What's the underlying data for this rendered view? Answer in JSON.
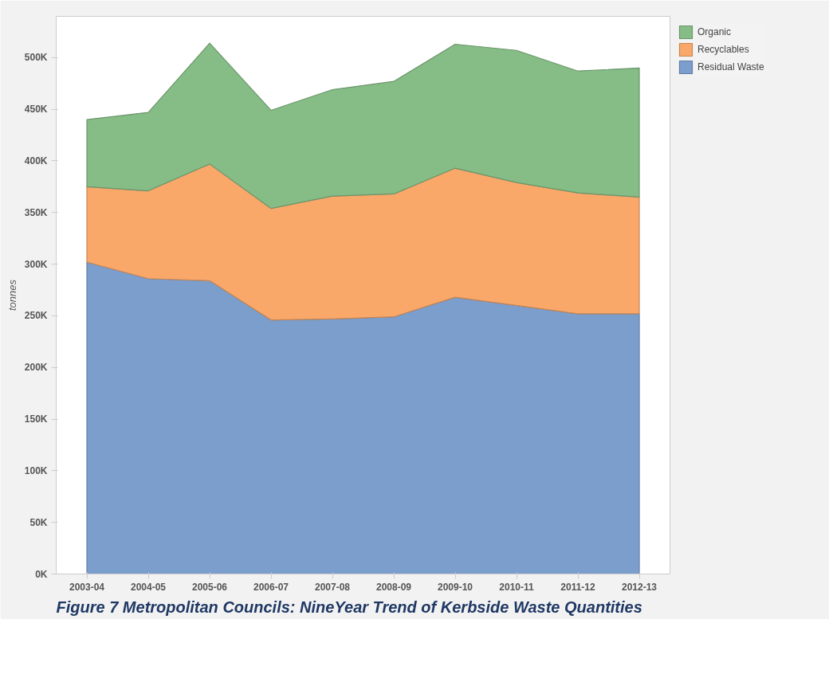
{
  "chart_data": {
    "type": "area",
    "title": "Figure 7 Metropolitan Councils: NineYear Trend of Kerbside Waste Quantities",
    "ylabel": "tonnes",
    "categories": [
      "2003-04",
      "2004-05",
      "2005-06",
      "2006-07",
      "2007-08",
      "2008-09",
      "2009-10",
      "2010-11",
      "2011-12",
      "2012-13"
    ],
    "stacked": true,
    "series": [
      {
        "name": "Residual Waste",
        "color": "#7b9ecd",
        "values": [
          302000,
          286000,
          284000,
          246000,
          247000,
          249000,
          268000,
          260000,
          252000,
          252000
        ]
      },
      {
        "name": "Recyclables",
        "color": "#f9a86a",
        "values": [
          73000,
          85000,
          113000,
          108000,
          119000,
          119000,
          125000,
          119000,
          117000,
          113000
        ]
      },
      {
        "name": "Organic",
        "color": "#86bc86",
        "values": [
          65000,
          76000,
          117000,
          95000,
          103000,
          109000,
          120000,
          128000,
          118000,
          125000
        ]
      }
    ],
    "ylim": [
      0,
      540000
    ],
    "yticks": [
      {
        "value": 0,
        "label": "0K"
      },
      {
        "value": 50000,
        "label": "50K"
      },
      {
        "value": 100000,
        "label": "100K"
      },
      {
        "value": 150000,
        "label": "150K"
      },
      {
        "value": 200000,
        "label": "200K"
      },
      {
        "value": 250000,
        "label": "250K"
      },
      {
        "value": 300000,
        "label": "300K"
      },
      {
        "value": 350000,
        "label": "350K"
      },
      {
        "value": 400000,
        "label": "400K"
      },
      {
        "value": 450000,
        "label": "450K"
      },
      {
        "value": 500000,
        "label": "500K"
      }
    ],
    "grid": false,
    "legend": "top right"
  }
}
